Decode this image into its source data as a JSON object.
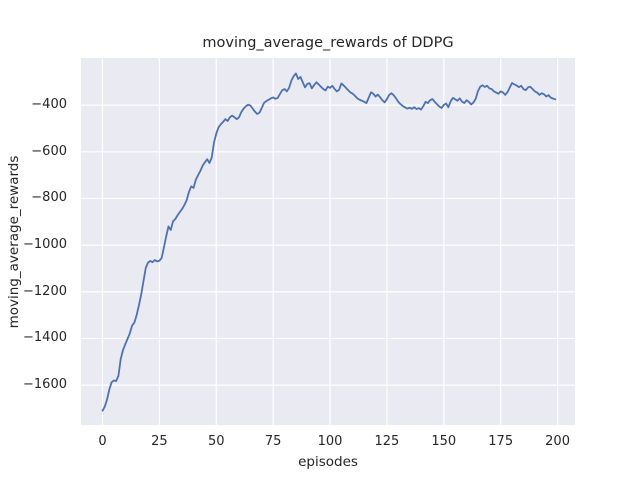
{
  "figure": {
    "title": "moving_average_rewards of DDPG",
    "background_color": "#ffffff"
  },
  "chart_data": {
    "type": "line",
    "title": "moving_average_rewards of DDPG",
    "xlabel": "episodes",
    "ylabel": "moving_average_rewards",
    "xlim": [
      -9.45,
      207.65
    ],
    "ylim": [
      -1771,
      -198
    ],
    "x_ticks": [
      0,
      25,
      50,
      75,
      100,
      125,
      150,
      175,
      200
    ],
    "y_ticks": [
      -400,
      -600,
      -800,
      -1000,
      -1200,
      -1400,
      -1600
    ],
    "grid": true,
    "legend": "none",
    "plot_bg_color": "#eaeaf2",
    "grid_color": "#ffffff",
    "text_color": "#262626",
    "series": [
      {
        "name": "DDPG moving average reward",
        "color": "#4c72b0",
        "line_width": 1.8,
        "x_start": 0,
        "x_step": 1,
        "values": [
          -1710,
          -1692,
          -1662,
          -1618,
          -1588,
          -1580,
          -1583,
          -1560,
          -1488,
          -1450,
          -1425,
          -1402,
          -1378,
          -1345,
          -1332,
          -1300,
          -1258,
          -1212,
          -1155,
          -1098,
          -1075,
          -1068,
          -1073,
          -1064,
          -1070,
          -1067,
          -1055,
          -1010,
          -962,
          -920,
          -935,
          -898,
          -888,
          -872,
          -858,
          -845,
          -828,
          -807,
          -772,
          -748,
          -755,
          -720,
          -700,
          -682,
          -660,
          -645,
          -632,
          -648,
          -625,
          -560,
          -522,
          -495,
          -482,
          -472,
          -460,
          -468,
          -452,
          -445,
          -452,
          -460,
          -452,
          -430,
          -415,
          -405,
          -398,
          -402,
          -415,
          -428,
          -438,
          -432,
          -412,
          -390,
          -383,
          -377,
          -371,
          -367,
          -373,
          -369,
          -352,
          -336,
          -331,
          -341,
          -326,
          -295,
          -276,
          -264,
          -288,
          -279,
          -302,
          -324,
          -309,
          -306,
          -328,
          -314,
          -302,
          -311,
          -321,
          -331,
          -337,
          -321,
          -326,
          -317,
          -331,
          -341,
          -334,
          -307,
          -316,
          -326,
          -336,
          -346,
          -351,
          -361,
          -371,
          -377,
          -381,
          -386,
          -391,
          -368,
          -345,
          -351,
          -363,
          -355,
          -366,
          -379,
          -388,
          -374,
          -356,
          -349,
          -358,
          -371,
          -386,
          -396,
          -404,
          -410,
          -415,
          -411,
          -416,
          -409,
          -417,
          -413,
          -419,
          -404,
          -386,
          -391,
          -379,
          -374,
          -386,
          -396,
          -406,
          -412,
          -399,
          -393,
          -409,
          -384,
          -369,
          -375,
          -381,
          -371,
          -385,
          -391,
          -379,
          -386,
          -397,
          -389,
          -373,
          -340,
          -321,
          -315,
          -322,
          -317,
          -328,
          -331,
          -341,
          -346,
          -351,
          -341,
          -346,
          -356,
          -344,
          -324,
          -305,
          -311,
          -316,
          -323,
          -317,
          -331,
          -336,
          -324,
          -321,
          -331,
          -341,
          -346,
          -356,
          -349,
          -353,
          -363,
          -357,
          -368,
          -372,
          -375
        ]
      }
    ]
  }
}
